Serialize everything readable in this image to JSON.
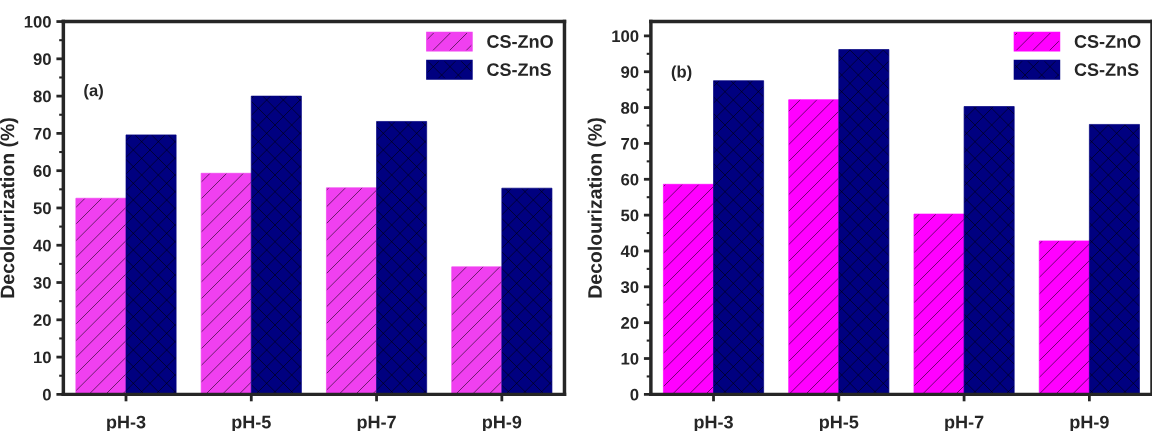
{
  "chart_data": [
    {
      "type": "bar",
      "ylabel": "Decolourization (%)",
      "annotations": [
        "(a)"
      ],
      "categories": [
        "pH-3",
        "pH-5",
        "pH-7",
        "pH-9"
      ],
      "ylim": [
        0,
        100
      ],
      "yticks": [
        0,
        10,
        20,
        30,
        40,
        50,
        60,
        70,
        80,
        90,
        100
      ],
      "grid": false,
      "legend": "top right",
      "series": [
        {
          "name": "CS-ZnO",
          "color": "#f040f0",
          "values": [
            52.6,
            59.3,
            55.4,
            34.2
          ]
        },
        {
          "name": "CS-ZnS",
          "color": "#000080",
          "values": [
            69.6,
            80.0,
            73.2,
            55.3
          ]
        }
      ]
    },
    {
      "type": "bar",
      "ylabel": "Decolourization (%)",
      "annotations": [
        "(b)"
      ],
      "categories": [
        "pH-3",
        "pH-5",
        "pH-7",
        "pH-9"
      ],
      "ylim": [
        0,
        104
      ],
      "yticks": [
        0,
        10,
        20,
        30,
        40,
        50,
        60,
        70,
        80,
        90,
        100
      ],
      "grid": false,
      "legend": "top right",
      "series": [
        {
          "name": "CS-ZnO",
          "color": "#ff00ff",
          "values": [
            58.6,
            82.2,
            50.3,
            42.8
          ]
        },
        {
          "name": "CS-ZnS",
          "color": "#000080",
          "values": [
            87.5,
            96.2,
            80.3,
            75.3
          ]
        }
      ]
    }
  ]
}
